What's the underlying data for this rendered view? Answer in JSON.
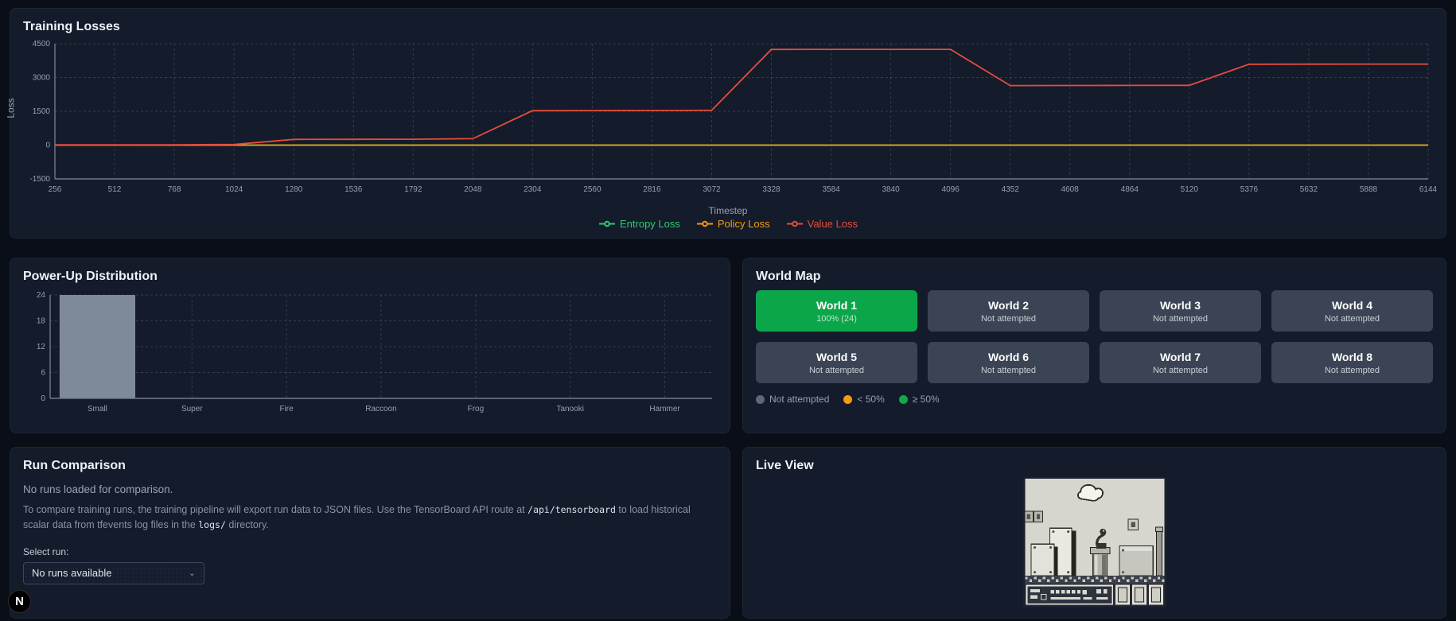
{
  "colors": {
    "page_bg": "#0a0e17",
    "panel_bg": "#141b2b",
    "entropy_green": "#2ecc71",
    "policy_orange": "#f39c12",
    "value_red": "#e74c3c",
    "world_complete_green": "#0ca64a",
    "world_gray": "#3a4454",
    "bar_gray": "#7f8a99"
  },
  "chart_data": [
    {
      "type": "line",
      "title": "Training Losses",
      "xlabel": "Timestep",
      "ylabel": "Loss",
      "x": [
        256,
        512,
        768,
        1024,
        1280,
        1536,
        1792,
        2048,
        2304,
        2560,
        2816,
        3072,
        3328,
        3584,
        3840,
        4096,
        4352,
        4608,
        4864,
        5120,
        5376,
        5632,
        5888,
        6144
      ],
      "yticks": [
        -1500,
        0,
        1500,
        3000,
        4500
      ],
      "ylim": [
        -1500,
        4500
      ],
      "grid": true,
      "legend_position": "bottom",
      "series": [
        {
          "name": "Entropy Loss",
          "color": "#2ecc71",
          "values": [
            0,
            0,
            0,
            0,
            0,
            0,
            0,
            0,
            0,
            0,
            0,
            0,
            0,
            0,
            0,
            0,
            0,
            0,
            0,
            0,
            0,
            0,
            0,
            0
          ]
        },
        {
          "name": "Policy Loss",
          "color": "#f39c12",
          "values": [
            0,
            0,
            0,
            0,
            0,
            0,
            0,
            0,
            0,
            0,
            0,
            0,
            0,
            0,
            0,
            0,
            0,
            0,
            0,
            0,
            0,
            0,
            0,
            0
          ]
        },
        {
          "name": "Value Loss",
          "color": "#e74c3c",
          "values": [
            10,
            12,
            15,
            30,
            255,
            258,
            262,
            285,
            1530,
            1532,
            1535,
            1545,
            4245,
            4250,
            4250,
            4248,
            2645,
            2648,
            2650,
            2655,
            3590,
            3592,
            3595,
            3595
          ]
        }
      ]
    },
    {
      "type": "bar",
      "title": "Power-Up Distribution",
      "categories": [
        "Small",
        "Super",
        "Fire",
        "Raccoon",
        "Frog",
        "Tanooki",
        "Hammer"
      ],
      "values": [
        24,
        0,
        0,
        0,
        0,
        0,
        0
      ],
      "yticks": [
        0,
        6,
        12,
        18,
        24
      ],
      "ylim": [
        0,
        24
      ],
      "bar_color": "#7f8a99",
      "grid": true
    }
  ],
  "world_map": {
    "title": "World Map",
    "worlds": [
      {
        "label": "World 1",
        "status": "100% (24)",
        "state": "complete"
      },
      {
        "label": "World 2",
        "status": "Not attempted",
        "state": "none"
      },
      {
        "label": "World 3",
        "status": "Not attempted",
        "state": "none"
      },
      {
        "label": "World 4",
        "status": "Not attempted",
        "state": "none"
      },
      {
        "label": "World 5",
        "status": "Not attempted",
        "state": "none"
      },
      {
        "label": "World 6",
        "status": "Not attempted",
        "state": "none"
      },
      {
        "label": "World 7",
        "status": "Not attempted",
        "state": "none"
      },
      {
        "label": "World 8",
        "status": "Not attempted",
        "state": "none"
      }
    ],
    "legend": [
      {
        "label": "Not attempted",
        "color": "#5d6878"
      },
      {
        "label": "< 50%",
        "color": "#f39c12"
      },
      {
        "label": "≥ 50%",
        "color": "#12a94d"
      }
    ]
  },
  "run_comparison": {
    "title": "Run Comparison",
    "empty_message": "No runs loaded for comparison.",
    "help": {
      "p1": "To compare training runs, the training pipeline will export run data to JSON files. Use the TensorBoard API route at ",
      "code1": "/api/tensorboard",
      "p2": " to load historical scalar data from tfevents log files in the ",
      "code2": "logs/",
      "p3": " directory."
    },
    "select_label": "Select run:",
    "select_value": "No runs available"
  },
  "live_view": {
    "title": "Live View"
  },
  "dev_badge": {
    "label": "N"
  }
}
